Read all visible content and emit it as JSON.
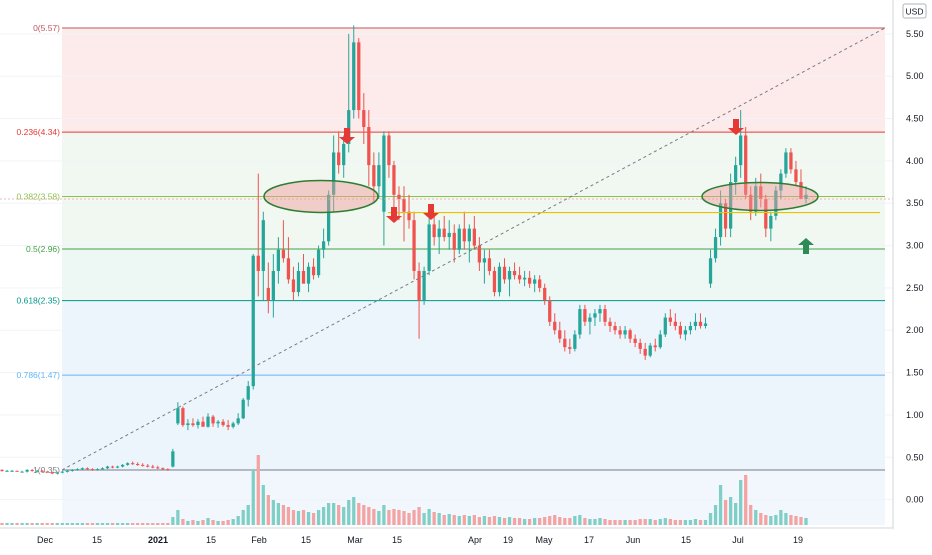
{
  "chart_data": {
    "type": "candlestick",
    "currency_label": "USD",
    "price_axis": {
      "min": -0.3,
      "max": 5.9,
      "ticks": [
        "5.50",
        "5.00",
        "4.50",
        "4.00",
        "3.50",
        "3.00",
        "2.50",
        "2.00",
        "1.50",
        "1.00",
        "0.50",
        "0.00"
      ]
    },
    "time_axis": {
      "ticks": [
        "Dec",
        "15",
        "2021",
        "15",
        "Feb",
        "15",
        "Mar",
        "15",
        "Apr",
        "19",
        "May",
        "17",
        "Jun",
        "15",
        "Jul",
        "19"
      ]
    },
    "fib_levels": [
      {
        "label": "0(5.57)",
        "value": 5.57,
        "color": "#c2575f"
      },
      {
        "label": "0.236(4.34)",
        "value": 4.34,
        "color": "#e53935"
      },
      {
        "label": "0.382(3.58)",
        "value": 3.58,
        "color": "#8bc34a"
      },
      {
        "label": "0.5(2.96)",
        "value": 2.96,
        "color": "#43a047"
      },
      {
        "label": "0.618(2.35)",
        "value": 2.35,
        "color": "#009688"
      },
      {
        "label": "0.786(1.47)",
        "value": 1.47,
        "color": "#64b5f6"
      },
      {
        "label": "1(0.35)",
        "value": 0.35,
        "color": "#787b86"
      }
    ],
    "candles": [
      [
        0.35,
        0.36,
        0.33,
        0.34
      ],
      [
        0.34,
        0.35,
        0.33,
        0.34
      ],
      [
        0.34,
        0.35,
        0.33,
        0.34
      ],
      [
        0.34,
        0.34,
        0.33,
        0.33
      ],
      [
        0.33,
        0.34,
        0.32,
        0.33
      ],
      [
        0.33,
        0.36,
        0.32,
        0.35
      ],
      [
        0.35,
        0.36,
        0.33,
        0.34
      ],
      [
        0.34,
        0.35,
        0.33,
        0.34
      ],
      [
        0.34,
        0.35,
        0.33,
        0.33
      ],
      [
        0.33,
        0.34,
        0.32,
        0.32
      ],
      [
        0.32,
        0.33,
        0.3,
        0.31
      ],
      [
        0.31,
        0.33,
        0.3,
        0.32
      ],
      [
        0.32,
        0.34,
        0.31,
        0.33
      ],
      [
        0.33,
        0.35,
        0.32,
        0.34
      ],
      [
        0.34,
        0.36,
        0.33,
        0.35
      ],
      [
        0.35,
        0.37,
        0.34,
        0.36
      ],
      [
        0.36,
        0.38,
        0.35,
        0.37
      ],
      [
        0.37,
        0.38,
        0.35,
        0.36
      ],
      [
        0.36,
        0.37,
        0.34,
        0.35
      ],
      [
        0.35,
        0.37,
        0.34,
        0.36
      ],
      [
        0.36,
        0.38,
        0.35,
        0.37
      ],
      [
        0.37,
        0.4,
        0.36,
        0.39
      ],
      [
        0.39,
        0.4,
        0.37,
        0.38
      ],
      [
        0.38,
        0.4,
        0.37,
        0.39
      ],
      [
        0.39,
        0.42,
        0.38,
        0.41
      ],
      [
        0.41,
        0.44,
        0.4,
        0.43
      ],
      [
        0.43,
        0.45,
        0.41,
        0.42
      ],
      [
        0.42,
        0.44,
        0.4,
        0.41
      ],
      [
        0.41,
        0.43,
        0.39,
        0.4
      ],
      [
        0.4,
        0.42,
        0.38,
        0.39
      ],
      [
        0.39,
        0.41,
        0.37,
        0.38
      ],
      [
        0.38,
        0.4,
        0.36,
        0.37
      ],
      [
        0.37,
        0.38,
        0.35,
        0.36
      ],
      [
        0.36,
        0.37,
        0.34,
        0.35
      ],
      [
        0.39,
        0.6,
        0.38,
        0.57
      ],
      [
        0.9,
        1.15,
        0.88,
        1.08
      ],
      [
        1.08,
        1.1,
        0.86,
        0.88
      ],
      [
        0.88,
        0.95,
        0.82,
        0.9
      ],
      [
        0.9,
        0.96,
        0.86,
        0.88
      ],
      [
        0.88,
        0.95,
        0.84,
        0.92
      ],
      [
        0.92,
        0.98,
        0.88,
        0.86
      ],
      [
        0.86,
        1.02,
        0.85,
        0.98
      ],
      [
        0.98,
        1.0,
        0.86,
        0.9
      ],
      [
        0.9,
        0.94,
        0.85,
        0.92
      ],
      [
        0.92,
        0.95,
        0.86,
        0.88
      ],
      [
        0.88,
        0.94,
        0.82,
        0.86
      ],
      [
        0.86,
        0.92,
        0.84,
        0.9
      ],
      [
        0.9,
        1.02,
        0.88,
        0.96
      ],
      [
        0.96,
        1.2,
        0.95,
        1.18
      ],
      [
        1.18,
        1.4,
        1.1,
        1.34
      ],
      [
        1.34,
        2.9,
        1.3,
        2.88
      ],
      [
        2.88,
        3.85,
        2.4,
        2.7
      ],
      [
        2.7,
        3.4,
        2.35,
        3.3
      ],
      [
        2.5,
        2.8,
        2.2,
        2.35
      ],
      [
        2.35,
        2.9,
        2.15,
        2.7
      ],
      [
        2.7,
        3.1,
        2.55,
        2.95
      ],
      [
        2.95,
        3.3,
        2.8,
        2.85
      ],
      [
        2.85,
        3.1,
        2.55,
        2.6
      ],
      [
        2.6,
        2.75,
        2.35,
        2.45
      ],
      [
        2.45,
        2.8,
        2.4,
        2.7
      ],
      [
        2.7,
        2.9,
        2.6,
        2.55
      ],
      [
        2.55,
        2.8,
        2.45,
        2.75
      ],
      [
        2.75,
        2.85,
        2.6,
        2.65
      ],
      [
        2.65,
        3.0,
        2.62,
        2.95
      ],
      [
        2.95,
        3.2,
        2.85,
        3.05
      ],
      [
        3.05,
        3.65,
        3.0,
        3.6
      ],
      [
        3.6,
        4.3,
        3.4,
        4.1
      ],
      [
        4.1,
        4.35,
        3.85,
        3.95
      ],
      [
        3.95,
        4.3,
        3.8,
        4.2
      ],
      [
        4.2,
        5.5,
        4.1,
        4.6
      ],
      [
        4.6,
        5.6,
        4.5,
        5.4
      ],
      [
        5.4,
        5.45,
        4.5,
        4.6
      ],
      [
        4.6,
        4.8,
        4.2,
        4.4
      ],
      [
        4.4,
        4.6,
        3.7,
        3.95
      ],
      [
        3.95,
        4.1,
        3.5,
        3.7
      ],
      [
        3.7,
        4.1,
        3.55,
        3.95
      ],
      [
        3.4,
        4.35,
        3.0,
        4.3
      ],
      [
        4.3,
        4.35,
        3.8,
        3.95
      ],
      [
        3.95,
        4.0,
        3.35,
        3.6
      ],
      [
        3.6,
        3.7,
        3.3,
        3.55
      ],
      [
        3.55,
        3.7,
        3.05,
        3.4
      ],
      [
        3.4,
        3.6,
        3.2,
        3.3
      ],
      [
        3.3,
        3.4,
        2.6,
        2.7
      ],
      [
        2.7,
        2.8,
        1.9,
        2.35
      ],
      [
        2.35,
        2.75,
        2.3,
        2.7
      ],
      [
        2.7,
        3.35,
        2.65,
        3.25
      ],
      [
        3.25,
        3.4,
        3.0,
        3.1
      ],
      [
        3.1,
        3.3,
        2.9,
        3.2
      ],
      [
        3.2,
        3.35,
        3.05,
        3.1
      ],
      [
        3.1,
        3.3,
        2.95,
        3.15
      ],
      [
        3.15,
        3.25,
        2.8,
        2.95
      ],
      [
        2.95,
        3.25,
        2.9,
        3.2
      ],
      [
        3.2,
        3.4,
        2.95,
        3.05
      ],
      [
        3.05,
        3.25,
        2.8,
        3.2
      ],
      [
        3.2,
        3.35,
        2.95,
        3.0
      ],
      [
        3.0,
        3.1,
        2.7,
        2.8
      ],
      [
        2.8,
        2.95,
        2.55,
        2.85
      ],
      [
        2.85,
        2.95,
        2.65,
        2.7
      ],
      [
        2.7,
        2.75,
        2.4,
        2.45
      ],
      [
        2.45,
        2.8,
        2.4,
        2.75
      ],
      [
        2.75,
        2.85,
        2.55,
        2.6
      ],
      [
        2.6,
        2.75,
        2.4,
        2.7
      ],
      [
        2.7,
        2.8,
        2.6,
        2.65
      ],
      [
        2.65,
        2.75,
        2.55,
        2.6
      ],
      [
        2.6,
        2.7,
        2.52,
        2.62
      ],
      [
        2.62,
        2.7,
        2.5,
        2.55
      ],
      [
        2.55,
        2.65,
        2.45,
        2.6
      ],
      [
        2.6,
        2.65,
        2.45,
        2.5
      ],
      [
        2.5,
        2.55,
        2.3,
        2.35
      ],
      [
        2.35,
        2.4,
        2.05,
        2.1
      ],
      [
        2.1,
        2.2,
        1.95,
        2.0
      ],
      [
        2.0,
        2.1,
        1.85,
        1.9
      ],
      [
        1.9,
        2.0,
        1.75,
        1.8
      ],
      [
        1.8,
        1.9,
        1.72,
        1.78
      ],
      [
        1.78,
        2.0,
        1.75,
        1.95
      ],
      [
        1.95,
        2.3,
        1.9,
        2.25
      ],
      [
        2.25,
        2.3,
        2.05,
        2.1
      ],
      [
        2.1,
        2.2,
        1.95,
        2.15
      ],
      [
        2.15,
        2.25,
        2.05,
        2.2
      ],
      [
        2.2,
        2.3,
        2.1,
        2.25
      ],
      [
        2.25,
        2.3,
        2.05,
        2.1
      ],
      [
        2.1,
        2.15,
        1.98,
        2.05
      ],
      [
        2.05,
        2.1,
        1.95,
        2.0
      ],
      [
        2.0,
        2.05,
        1.9,
        1.95
      ],
      [
        1.95,
        2.05,
        1.9,
        2.0
      ],
      [
        2.0,
        2.02,
        1.85,
        1.9
      ],
      [
        1.9,
        1.95,
        1.8,
        1.85
      ],
      [
        1.85,
        1.9,
        1.72,
        1.78
      ],
      [
        1.78,
        1.85,
        1.65,
        1.7
      ],
      [
        1.7,
        1.85,
        1.68,
        1.82
      ],
      [
        1.82,
        1.9,
        1.75,
        1.8
      ],
      [
        1.8,
        2.0,
        1.78,
        1.95
      ],
      [
        1.95,
        2.2,
        1.92,
        2.15
      ],
      [
        2.15,
        2.25,
        2.05,
        2.1
      ],
      [
        2.1,
        2.2,
        2.0,
        2.05
      ],
      [
        2.05,
        2.1,
        1.9,
        1.95
      ],
      [
        1.95,
        2.05,
        1.88,
        2.0
      ],
      [
        2.0,
        2.1,
        1.95,
        2.05
      ],
      [
        2.05,
        2.2,
        2.0,
        2.1
      ],
      [
        2.1,
        2.2,
        2.02,
        2.05
      ],
      [
        2.05,
        2.15,
        2.02,
        2.08
      ],
      [
        2.55,
        2.95,
        2.5,
        2.85
      ],
      [
        2.85,
        3.2,
        2.8,
        3.1
      ],
      [
        3.1,
        3.65,
        3.0,
        3.5
      ],
      [
        3.5,
        3.55,
        3.1,
        3.2
      ],
      [
        3.2,
        3.85,
        3.1,
        3.75
      ],
      [
        3.75,
        4.05,
        3.6,
        3.95
      ],
      [
        3.95,
        4.6,
        3.8,
        4.3
      ],
      [
        4.3,
        4.4,
        3.55,
        3.6
      ],
      [
        3.6,
        3.7,
        3.3,
        3.4
      ],
      [
        3.4,
        3.8,
        3.35,
        3.7
      ],
      [
        3.7,
        3.85,
        3.45,
        3.55
      ],
      [
        3.55,
        3.6,
        3.1,
        3.2
      ],
      [
        3.2,
        3.4,
        3.05,
        3.35
      ],
      [
        3.35,
        3.7,
        3.3,
        3.65
      ],
      [
        3.65,
        3.9,
        3.55,
        3.85
      ],
      [
        3.85,
        4.15,
        3.8,
        4.1
      ],
      [
        4.1,
        4.15,
        3.85,
        3.9
      ],
      [
        3.9,
        4.0,
        3.7,
        3.75
      ],
      [
        3.75,
        3.9,
        3.6,
        3.55
      ],
      [
        3.55,
        3.7,
        3.5,
        3.6
      ]
    ],
    "volumes": [
      0.02,
      0.02,
      0.02,
      0.02,
      0.02,
      0.02,
      0.02,
      0.02,
      0.02,
      0.02,
      0.02,
      0.02,
      0.02,
      0.02,
      0.02,
      0.02,
      0.02,
      0.02,
      0.02,
      0.02,
      0.02,
      0.02,
      0.02,
      0.02,
      0.02,
      0.02,
      0.02,
      0.02,
      0.02,
      0.02,
      0.02,
      0.02,
      0.02,
      0.02,
      0.08,
      0.15,
      0.06,
      0.04,
      0.05,
      0.04,
      0.05,
      0.07,
      0.05,
      0.04,
      0.04,
      0.05,
      0.06,
      0.09,
      0.15,
      0.2,
      0.55,
      0.7,
      0.4,
      0.3,
      0.25,
      0.22,
      0.2,
      0.18,
      0.15,
      0.14,
      0.15,
      0.13,
      0.12,
      0.15,
      0.18,
      0.22,
      0.22,
      0.2,
      0.18,
      0.25,
      0.28,
      0.22,
      0.2,
      0.18,
      0.16,
      0.14,
      0.2,
      0.15,
      0.16,
      0.15,
      0.14,
      0.12,
      0.15,
      0.18,
      0.12,
      0.16,
      0.13,
      0.12,
      0.1,
      0.11,
      0.1,
      0.09,
      0.1,
      0.09,
      0.1,
      0.08,
      0.09,
      0.08,
      0.09,
      0.08,
      0.07,
      0.08,
      0.07,
      0.07,
      0.06,
      0.06,
      0.07,
      0.07,
      0.08,
      0.09,
      0.1,
      0.08,
      0.07,
      0.07,
      0.09,
      0.1,
      0.07,
      0.06,
      0.06,
      0.07,
      0.06,
      0.05,
      0.05,
      0.05,
      0.05,
      0.05,
      0.05,
      0.06,
      0.06,
      0.06,
      0.05,
      0.06,
      0.07,
      0.06,
      0.05,
      0.05,
      0.05,
      0.05,
      0.06,
      0.05,
      0.05,
      0.12,
      0.2,
      0.4,
      0.25,
      0.28,
      0.22,
      0.45,
      0.5,
      0.2,
      0.15,
      0.12,
      0.1,
      0.09,
      0.1,
      0.15,
      0.12,
      0.1,
      0.09,
      0.08,
      0.07
    ],
    "volume_scale_max": 1.0
  },
  "colors": {
    "up": "#26a69a",
    "down": "#ef5350",
    "up_vol": "#7fcfc6",
    "down_vol": "#f4a3a3"
  }
}
